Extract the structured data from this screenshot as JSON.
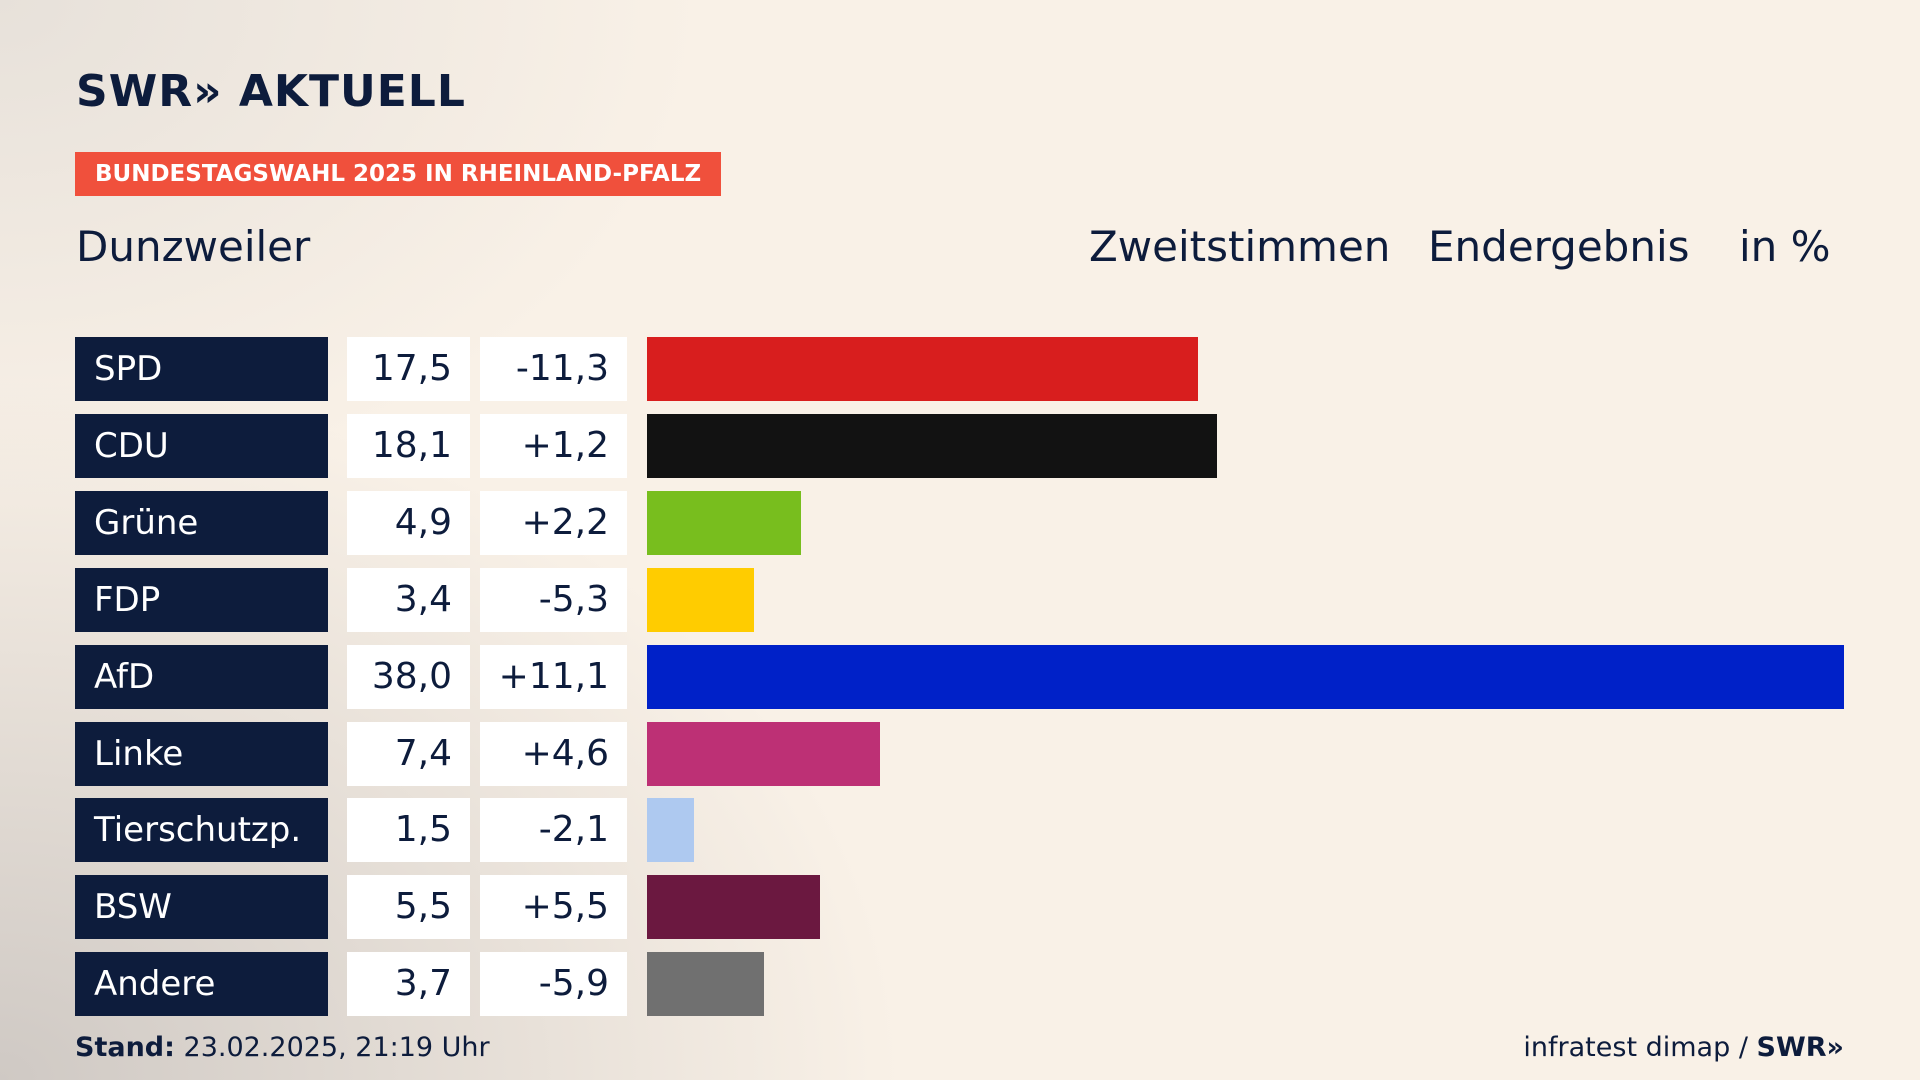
{
  "header": {
    "logo": "SWR» AKTUELL",
    "banner": "BUNDESTAGSWAHL 2025 IN RHEINLAND-PFALZ",
    "place": "Dunzweiler",
    "column_1": "Zweitstimmen",
    "column_2": "Endergebnis",
    "unit": "in %"
  },
  "chart_data": {
    "type": "bar",
    "categories": [
      "SPD",
      "CDU",
      "Grüne",
      "FDP",
      "AfD",
      "Linke",
      "Tierschutzp.",
      "BSW",
      "Andere"
    ],
    "values": [
      17.5,
      18.1,
      4.9,
      3.4,
      38.0,
      7.4,
      1.5,
      5.5,
      3.7
    ],
    "value_labels": [
      "17,5",
      "18,1",
      "4,9",
      "3,4",
      "38,0",
      "7,4",
      "1,5",
      "5,5",
      "3,7"
    ],
    "changes": [
      -11.3,
      1.2,
      2.2,
      -5.3,
      11.1,
      4.6,
      -2.1,
      5.5,
      -5.9
    ],
    "change_labels": [
      "-11,3",
      "+1,2",
      "+2,2",
      "-5,3",
      "+11,1",
      "+4,6",
      "-2,1",
      "+5,5",
      "-5,9"
    ],
    "colors": [
      "#d81e1e",
      "#121212",
      "#78be1e",
      "#ffcc00",
      "#0021c8",
      "#bd3075",
      "#aec9f0",
      "#6b1840",
      "#707070"
    ]
  },
  "footer": {
    "stand_label": "Stand:",
    "stand": "23.02.2025, 21:19 Uhr",
    "source": "infratest dimap /",
    "logo": "SWR»"
  }
}
